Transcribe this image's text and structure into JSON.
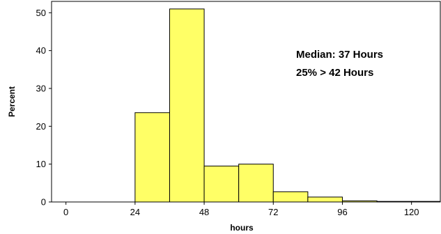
{
  "chart_data": {
    "type": "bar",
    "xlabel": "hours",
    "ylabel": "Percent",
    "xlim": [
      -5,
      130
    ],
    "ylim": [
      0,
      53
    ],
    "x_ticks": [
      0,
      24,
      48,
      72,
      96,
      120
    ],
    "y_ticks": [
      0,
      10,
      20,
      30,
      40,
      50
    ],
    "bin_width": 12,
    "bars": [
      {
        "x0": 0,
        "x1": 12,
        "value": 0
      },
      {
        "x0": 12,
        "x1": 24,
        "value": 0
      },
      {
        "x0": 24,
        "x1": 36,
        "value": 23.6
      },
      {
        "x0": 36,
        "x1": 48,
        "value": 51
      },
      {
        "x0": 48,
        "x1": 60,
        "value": 9.5
      },
      {
        "x0": 60,
        "x1": 72,
        "value": 10
      },
      {
        "x0": 72,
        "x1": 84,
        "value": 2.7
      },
      {
        "x0": 84,
        "x1": 96,
        "value": 1.3
      },
      {
        "x0": 96,
        "x1": 108,
        "value": 0.3
      },
      {
        "x0": 108,
        "x1": 120,
        "value": 0.15
      },
      {
        "x0": 120,
        "x1": 132,
        "value": 0.15
      }
    ],
    "annotations": [
      "Median: 37 Hours",
      "25% > 42 Hours"
    ],
    "bar_color": "#ffff66",
    "edge_color": "#000000",
    "grid": false
  }
}
